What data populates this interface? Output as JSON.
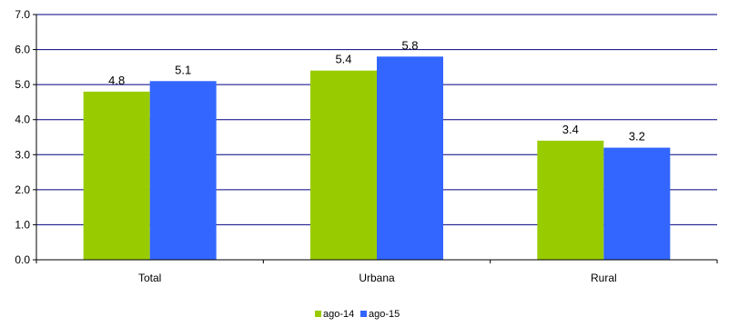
{
  "chart_data": {
    "type": "bar",
    "categories": [
      "Total",
      "Urbana",
      "Rural"
    ],
    "series": [
      {
        "name": "ago-14",
        "values": [
          4.8,
          5.4,
          3.4
        ],
        "color": "#99cc00"
      },
      {
        "name": "ago-15",
        "values": [
          5.1,
          5.8,
          3.2
        ],
        "color": "#3366ff"
      }
    ],
    "title": "",
    "xlabel": "",
    "ylabel": "",
    "ylim": [
      0,
      7
    ],
    "yticks": [
      "0.0",
      "1.0",
      "2.0",
      "3.0",
      "4.0",
      "5.0",
      "6.0",
      "7.0"
    ],
    "grid": true,
    "legend_position": "bottom-center"
  }
}
